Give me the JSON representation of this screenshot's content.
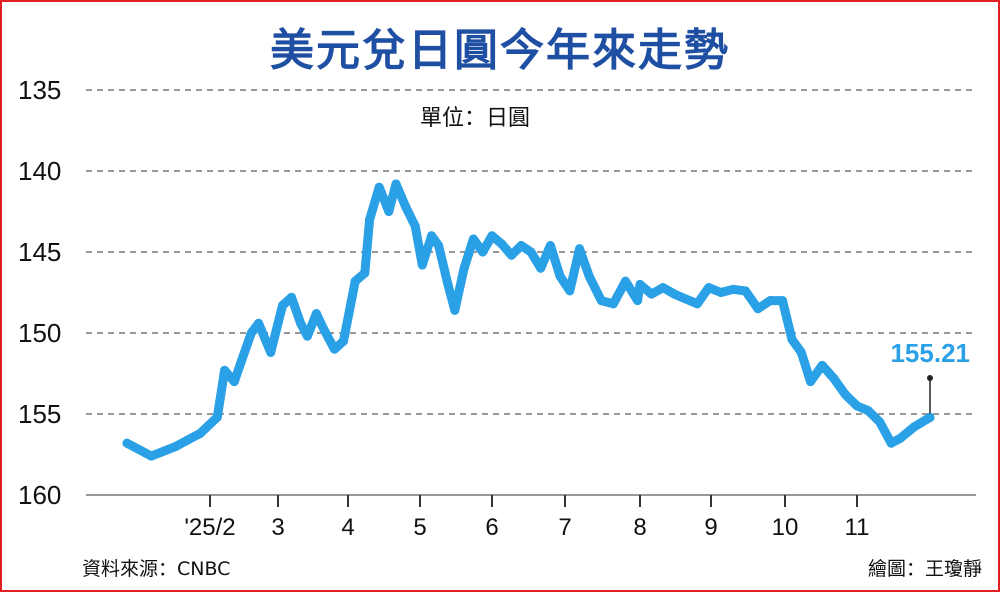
{
  "chart_data": {
    "type": "line",
    "title": "美元兌日圓今年來走勢",
    "unit_label": "單位：日圓",
    "y_ticks": [
      "135",
      "140",
      "145",
      "150",
      "155",
      "160"
    ],
    "ylim": [
      160,
      135
    ],
    "y_inverted": true,
    "grid": "horizontal dashed",
    "x_ticks": [
      "'25/2",
      "3",
      "4",
      "5",
      "6",
      "7",
      "8",
      "9",
      "10",
      "11"
    ],
    "series": [
      {
        "color": "#2aa0e6",
        "x": [
          "2025-01-15",
          "2025-01-20",
          "2025-01-25",
          "2025-01-30",
          "2025-02-04",
          "2025-02-07",
          "2025-02-11",
          "2025-02-14",
          "2025-02-18",
          "2025-02-21",
          "2025-02-26",
          "2025-03-03",
          "2025-03-07",
          "2025-03-11",
          "2025-03-14",
          "2025-03-18",
          "2025-03-21",
          "2025-03-26",
          "2025-03-30",
          "2025-04-04",
          "2025-04-08",
          "2025-04-10",
          "2025-04-14",
          "2025-04-18",
          "2025-04-21",
          "2025-04-25",
          "2025-04-29",
          "2025-05-02",
          "2025-05-06",
          "2025-05-09",
          "2025-05-13",
          "2025-05-16",
          "2025-05-20",
          "2025-05-24",
          "2025-05-28",
          "2025-06-01",
          "2025-06-05",
          "2025-06-09",
          "2025-06-13",
          "2025-06-17",
          "2025-06-21",
          "2025-06-25",
          "2025-06-29",
          "2025-07-03",
          "2025-07-07",
          "2025-07-11",
          "2025-07-16",
          "2025-07-21",
          "2025-07-26",
          "2025-07-31",
          "2025-08-01",
          "2025-08-06",
          "2025-08-11",
          "2025-08-16",
          "2025-08-21",
          "2025-08-26",
          "2025-08-31",
          "2025-09-05",
          "2025-09-10",
          "2025-09-15",
          "2025-09-20",
          "2025-09-25",
          "2025-09-30",
          "2025-10-04",
          "2025-10-08",
          "2025-10-12",
          "2025-10-17",
          "2025-10-22",
          "2025-10-27",
          "2025-11-01",
          "2025-11-06",
          "2025-11-11",
          "2025-11-16",
          "2025-11-20",
          "2025-11-26",
          "2025-12-03"
        ],
        "values": [
          156.8,
          157.6,
          157.0,
          156.2,
          155.2,
          152.3,
          153.0,
          151.7,
          150.0,
          149.4,
          151.2,
          148.3,
          147.8,
          149.4,
          150.2,
          148.8,
          149.7,
          151.0,
          150.5,
          146.8,
          146.3,
          143.0,
          141.0,
          142.5,
          140.8,
          142.2,
          143.4,
          145.8,
          144.0,
          144.6,
          147.0,
          148.6,
          146.0,
          144.2,
          145.0,
          144.0,
          144.5,
          145.2,
          144.6,
          145.0,
          146.0,
          144.6,
          146.5,
          147.4,
          144.8,
          146.5,
          148.0,
          148.2,
          146.8,
          148.0,
          147.0,
          147.6,
          147.2,
          147.6,
          147.9,
          148.2,
          147.2,
          147.5,
          147.3,
          147.4,
          148.5,
          148.0,
          148.0,
          150.4,
          151.2,
          153.0,
          152.0,
          152.8,
          153.8,
          154.5,
          154.8,
          155.5,
          156.8,
          156.5,
          155.8,
          155.21
        ]
      }
    ],
    "annotation": {
      "label": "155.21",
      "x": "2025-12-03",
      "value": 155.21
    }
  },
  "footer": {
    "source": "資料來源：CNBC",
    "credit": "繪圖：王瓊靜"
  }
}
